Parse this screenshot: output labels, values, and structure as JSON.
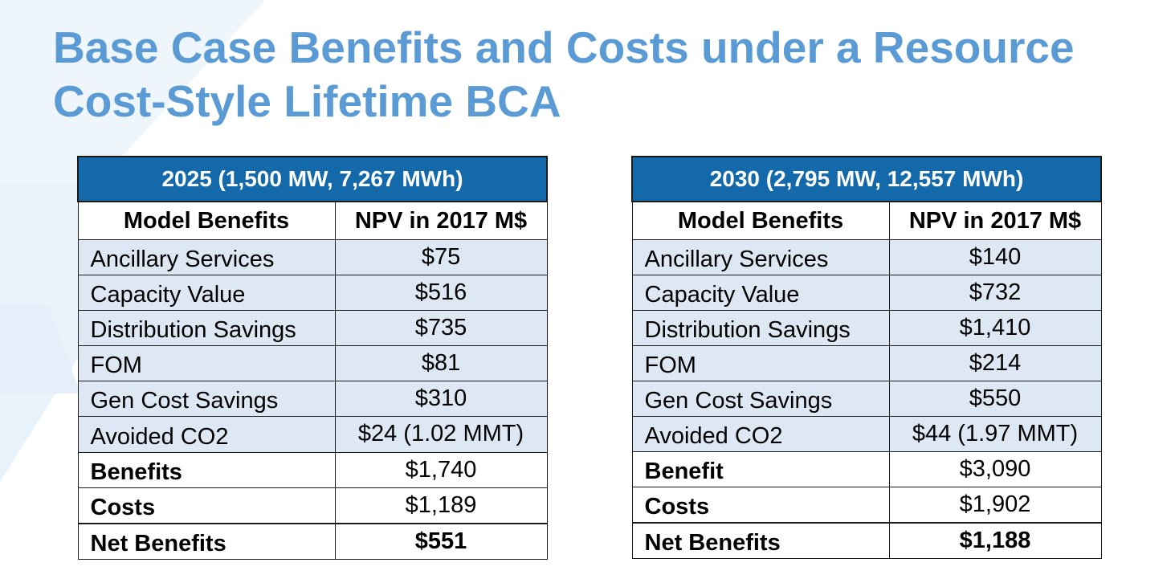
{
  "slide": {
    "title": "Base Case Benefits and Costs under a Resource Cost-Style Lifetime BCA"
  },
  "colors": {
    "title": "#5b9bd5",
    "table_header_bg": "#1369a9",
    "row_shade": "#dde8f4",
    "background_chevron": "#eaf3fa"
  },
  "tables": [
    {
      "year_header": "2025 (1,500 MW, 7,267 MWh)",
      "col_label": "Model Benefits",
      "col_value": "NPV in 2017 M$",
      "rows": [
        {
          "label": "Ancillary Services",
          "value": "$75"
        },
        {
          "label": "Capacity Value",
          "value": "$516"
        },
        {
          "label": "Distribution Savings",
          "value": "$735"
        },
        {
          "label": "FOM",
          "value": "$81"
        },
        {
          "label": "Gen Cost Savings",
          "value": "$310"
        },
        {
          "label": "Avoided CO2",
          "value": "$24 (1.02 MMT)"
        },
        {
          "label": "Benefits",
          "value": "$1,740"
        },
        {
          "label": "Costs",
          "value": "$1,189"
        },
        {
          "label": "Net Benefits",
          "value": "$551"
        }
      ]
    },
    {
      "year_header": "2030 (2,795 MW, 12,557 MWh)",
      "col_label": "Model Benefits",
      "col_value": "NPV in 2017 M$",
      "rows": [
        {
          "label": "Ancillary Services",
          "value": "$140"
        },
        {
          "label": "Capacity Value",
          "value": "$732"
        },
        {
          "label": "Distribution Savings",
          "value": "$1,410"
        },
        {
          "label": "FOM",
          "value": "$214"
        },
        {
          "label": "Gen Cost Savings",
          "value": "$550"
        },
        {
          "label": "Avoided CO2",
          "value": "$44 (1.97 MMT)"
        },
        {
          "label": "Benefit",
          "value": "$3,090"
        },
        {
          "label": "Costs",
          "value": "$1,902"
        },
        {
          "label": "Net Benefits",
          "value": "$1,188"
        }
      ]
    }
  ]
}
